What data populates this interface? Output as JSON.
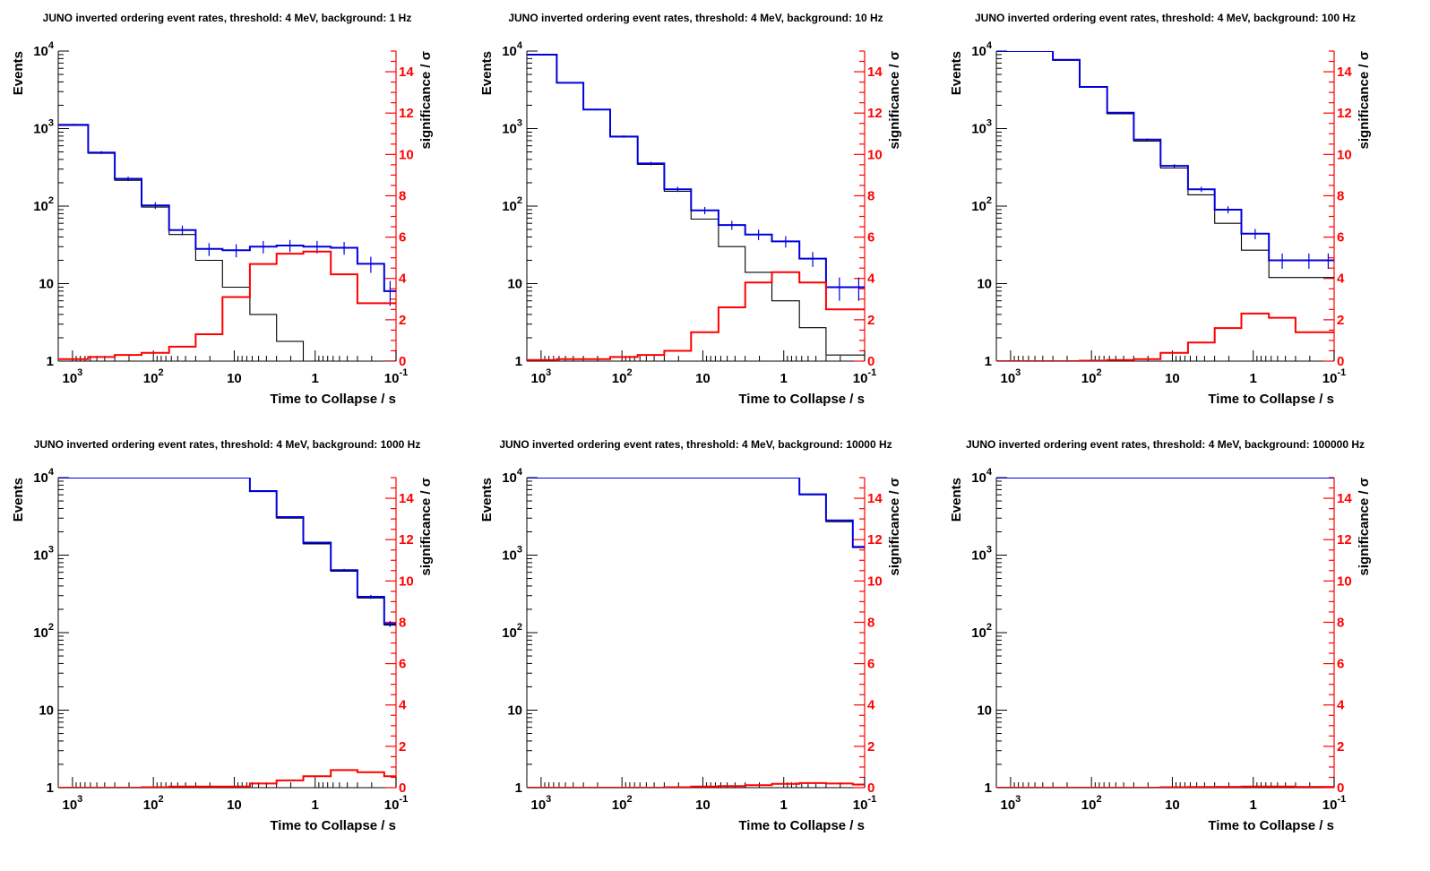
{
  "chart_data": [
    {
      "type": "line",
      "title": "JUNO inverted ordering event rates, threshold: 4 MeV, background: 1 Hz",
      "xlabel": "Time to Collapse / s",
      "ylabel": "Events",
      "y2label": "significance / σ",
      "x_scale": "log",
      "x_reversed": true,
      "xlim": [
        1500,
        0.1
      ],
      "y_scale": "log",
      "ylim": [
        1,
        10000
      ],
      "y2lim": [
        0,
        15
      ],
      "x_tick_labels": [
        "10^3",
        "10^2",
        "10",
        "1",
        "10^-1"
      ],
      "y_tick_labels": [
        "1",
        "10",
        "10^2",
        "10^3",
        "10^4"
      ],
      "y2_tick_labels": [
        "0",
        "2",
        "4",
        "6",
        "8",
        "10",
        "12",
        "14"
      ],
      "bin_edges": [
        1500,
        640,
        300,
        140,
        64,
        30,
        14,
        6.4,
        3,
        1.4,
        0.64,
        0.3,
        0.14,
        0.1
      ],
      "series": [
        {
          "color": "#000000",
          "axis": "left",
          "values": [
            1100,
            480,
            215,
            97,
            43,
            20,
            9,
            4,
            1.8,
            1,
            1,
            1,
            1
          ]
        },
        {
          "color": "#0000dd",
          "axis": "left",
          "values": [
            1120,
            490,
            225,
            102,
            49,
            28,
            27,
            30,
            31,
            30,
            29,
            18,
            8
          ],
          "error_bars": true
        },
        {
          "color": "#ff0000",
          "axis": "right",
          "values": [
            0.1,
            0.2,
            0.3,
            0.4,
            0.7,
            1.3,
            3.1,
            4.7,
            5.2,
            5.3,
            4.2,
            2.8,
            2.8
          ]
        }
      ]
    },
    {
      "type": "line",
      "title": "JUNO inverted ordering event rates, threshold: 4 MeV, background: 10 Hz",
      "xlabel": "Time to Collapse / s",
      "ylabel": "Events",
      "y2label": "significance / σ",
      "x_scale": "log",
      "x_reversed": true,
      "xlim": [
        1500,
        0.1
      ],
      "y_scale": "log",
      "ylim": [
        1,
        10000
      ],
      "y2lim": [
        0,
        15
      ],
      "x_tick_labels": [
        "10^3",
        "10^2",
        "10",
        "1",
        "10^-1"
      ],
      "y_tick_labels": [
        "1",
        "10",
        "10^2",
        "10^3",
        "10^4"
      ],
      "y2_tick_labels": [
        "0",
        "2",
        "4",
        "6",
        "8",
        "10",
        "12",
        "14"
      ],
      "bin_edges": [
        1500,
        640,
        300,
        140,
        64,
        30,
        14,
        6.4,
        3,
        1.4,
        0.64,
        0.3,
        0.14,
        0.1
      ],
      "series": [
        {
          "color": "#000000",
          "axis": "left",
          "values": [
            9000,
            3900,
            1750,
            780,
            345,
            155,
            68,
            30,
            14,
            6,
            2.7,
            1.2,
            1.2
          ]
        },
        {
          "color": "#0000dd",
          "axis": "left",
          "values": [
            9000,
            3900,
            1760,
            790,
            355,
            165,
            88,
            57,
            43,
            35,
            21,
            9,
            9
          ],
          "error_bars": true
        },
        {
          "color": "#ff0000",
          "axis": "right",
          "values": [
            0.05,
            0.1,
            0.1,
            0.2,
            0.3,
            0.5,
            1.4,
            2.6,
            3.8,
            4.3,
            3.8,
            2.5,
            2.5
          ]
        }
      ]
    },
    {
      "type": "line",
      "title": "JUNO inverted ordering event rates, threshold: 4 MeV, background: 100 Hz",
      "xlabel": "Time to Collapse / s",
      "ylabel": "Events",
      "y2label": "significance / σ",
      "x_scale": "log",
      "x_reversed": true,
      "xlim": [
        1500,
        0.1
      ],
      "y_scale": "log",
      "ylim": [
        1,
        10000
      ],
      "y2lim": [
        0,
        15
      ],
      "x_tick_labels": [
        "10^3",
        "10^2",
        "10",
        "1",
        "10^-1"
      ],
      "y_tick_labels": [
        "1",
        "10",
        "10^2",
        "10^3",
        "10^4"
      ],
      "y2_tick_labels": [
        "0",
        "2",
        "4",
        "6",
        "8",
        "10",
        "12",
        "14"
      ],
      "bin_edges": [
        1500,
        640,
        300,
        140,
        64,
        30,
        14,
        6.4,
        3,
        1.4,
        0.64,
        0.3,
        0.14,
        0.1
      ],
      "series": [
        {
          "color": "#000000",
          "axis": "left",
          "values": [
            10000,
            10000,
            7600,
            3400,
            1550,
            690,
            310,
            140,
            60,
            27,
            12,
            12,
            12
          ]
        },
        {
          "color": "#0000dd",
          "axis": "left",
          "values": [
            10000,
            10000,
            7700,
            3450,
            1600,
            720,
            330,
            165,
            90,
            44,
            20,
            20,
            20
          ],
          "error_bars": true
        },
        {
          "color": "#ff0000",
          "axis": "right",
          "values": [
            0,
            0,
            0,
            0.02,
            0.05,
            0.1,
            0.4,
            0.9,
            1.6,
            2.3,
            2.1,
            1.4,
            1.4
          ]
        }
      ]
    },
    {
      "type": "line",
      "title": "JUNO inverted ordering event rates, threshold: 4 MeV, background: 1000 Hz",
      "xlabel": "Time to Collapse / s",
      "ylabel": "Events",
      "y2label": "significance / σ",
      "x_scale": "log",
      "x_reversed": true,
      "xlim": [
        1500,
        0.1
      ],
      "y_scale": "log",
      "ylim": [
        1,
        10000
      ],
      "y2lim": [
        0,
        15
      ],
      "x_tick_labels": [
        "10^3",
        "10^2",
        "10",
        "1",
        "10^-1"
      ],
      "y_tick_labels": [
        "1",
        "10",
        "10^2",
        "10^3",
        "10^4"
      ],
      "y2_tick_labels": [
        "0",
        "2",
        "4",
        "6",
        "8",
        "10",
        "12",
        "14"
      ],
      "bin_edges": [
        1500,
        640,
        300,
        140,
        64,
        30,
        14,
        6.4,
        3,
        1.4,
        0.64,
        0.3,
        0.14,
        0.1
      ],
      "series": [
        {
          "color": "#000000",
          "axis": "left",
          "values": [
            10000,
            10000,
            10000,
            10000,
            10000,
            10000,
            10000,
            6600,
            3000,
            1400,
            620,
            280,
            125
          ]
        },
        {
          "color": "#0000dd",
          "axis": "left",
          "values": [
            10000,
            10000,
            10000,
            10000,
            10000,
            10000,
            10000,
            6700,
            3100,
            1450,
            640,
            290,
            130
          ],
          "error_bars": true
        },
        {
          "color": "#ff0000",
          "axis": "right",
          "values": [
            0,
            0,
            0,
            0.02,
            0.05,
            0.05,
            0.05,
            0.2,
            0.35,
            0.55,
            0.85,
            0.75,
            0.55
          ]
        }
      ]
    },
    {
      "type": "line",
      "title": "JUNO inverted ordering event rates, threshold: 4 MeV, background: 10000 Hz",
      "xlabel": "Time to Collapse / s",
      "ylabel": "Events",
      "y2label": "significance / σ",
      "x_scale": "log",
      "x_reversed": true,
      "xlim": [
        1500,
        0.1
      ],
      "y_scale": "log",
      "ylim": [
        1,
        10000
      ],
      "y2lim": [
        0,
        15
      ],
      "x_tick_labels": [
        "10^3",
        "10^2",
        "10",
        "1",
        "10^-1"
      ],
      "y_tick_labels": [
        "1",
        "10",
        "10^2",
        "10^3",
        "10^4"
      ],
      "y2_tick_labels": [
        "0",
        "2",
        "4",
        "6",
        "8",
        "10",
        "12",
        "14"
      ],
      "bin_edges": [
        1500,
        640,
        300,
        140,
        64,
        30,
        14,
        6.4,
        3,
        1.4,
        0.64,
        0.3,
        0.14,
        0.1
      ],
      "series": [
        {
          "color": "#000000",
          "axis": "left",
          "values": [
            10000,
            10000,
            10000,
            10000,
            10000,
            10000,
            10000,
            10000,
            10000,
            10000,
            6000,
            2700,
            1250
          ]
        },
        {
          "color": "#0000dd",
          "axis": "left",
          "values": [
            10000,
            10000,
            10000,
            10000,
            10000,
            10000,
            10000,
            10000,
            10000,
            10000,
            6100,
            2800,
            1280
          ],
          "error_bars": false
        },
        {
          "color": "#ff0000",
          "axis": "right",
          "values": [
            0,
            0,
            0,
            0,
            0,
            0.02,
            0.05,
            0.08,
            0.12,
            0.18,
            0.22,
            0.2,
            0.15
          ]
        }
      ]
    },
    {
      "type": "line",
      "title": "JUNO inverted ordering event rates, threshold: 4 MeV, background: 100000 Hz",
      "xlabel": "Time to Collapse / s",
      "ylabel": "Events",
      "y2label": "significance / σ",
      "x_scale": "log",
      "x_reversed": true,
      "xlim": [
        1500,
        0.1
      ],
      "y_scale": "log",
      "ylim": [
        1,
        10000
      ],
      "y2lim": [
        0,
        15
      ],
      "x_tick_labels": [
        "10^3",
        "10^2",
        "10",
        "1",
        "10^-1"
      ],
      "y_tick_labels": [
        "1",
        "10",
        "10^2",
        "10^3",
        "10^4"
      ],
      "y2_tick_labels": [
        "0",
        "2",
        "4",
        "6",
        "8",
        "10",
        "12",
        "14"
      ],
      "bin_edges": [
        1500,
        640,
        300,
        140,
        64,
        30,
        14,
        6.4,
        3,
        1.4,
        0.64,
        0.3,
        0.14,
        0.1
      ],
      "series": [
        {
          "color": "#000000",
          "axis": "left",
          "values": [
            10000,
            10000,
            10000,
            10000,
            10000,
            10000,
            10000,
            10000,
            10000,
            10000,
            10000,
            10000,
            10000
          ]
        },
        {
          "color": "#0000dd",
          "axis": "left",
          "values": [
            10000,
            10000,
            10000,
            10000,
            10000,
            10000,
            10000,
            10000,
            10000,
            10000,
            10000,
            10000,
            10000
          ],
          "error_bars": false
        },
        {
          "color": "#ff0000",
          "axis": "right",
          "values": [
            0,
            0,
            0,
            0,
            0,
            0,
            0.02,
            0.03,
            0.04,
            0.05,
            0.05,
            0.04,
            0.04
          ]
        }
      ]
    }
  ]
}
